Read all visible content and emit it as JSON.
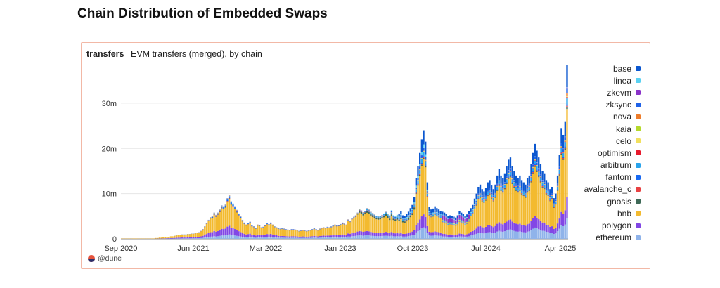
{
  "page": {
    "title": "Chain Distribution of Embedded Swaps"
  },
  "card": {
    "query_name": "transfers",
    "subtitle": "EVM transfers (merged), by chain",
    "footer": "@dune"
  },
  "legend": [
    {
      "name": "base",
      "color": "#0b57d0"
    },
    {
      "name": "linea",
      "color": "#5ad1f2"
    },
    {
      "name": "zkevm",
      "color": "#8a32c9"
    },
    {
      "name": "zksync",
      "color": "#1f62e8"
    },
    {
      "name": "nova",
      "color": "#ee7d2b"
    },
    {
      "name": "kaia",
      "color": "#b5d92b"
    },
    {
      "name": "celo",
      "color": "#f2e05e"
    },
    {
      "name": "optimism",
      "color": "#e8192c"
    },
    {
      "name": "arbitrum",
      "color": "#2aa4ec"
    },
    {
      "name": "fantom",
      "color": "#1869f2"
    },
    {
      "name": "avalanche_c",
      "color": "#e84142"
    },
    {
      "name": "gnosis",
      "color": "#3e6957"
    },
    {
      "name": "bnb",
      "color": "#f3ba2f"
    },
    {
      "name": "polygon",
      "color": "#8247e5"
    },
    {
      "name": "ethereum",
      "color": "#8fb3ea"
    }
  ],
  "chart_data": {
    "type": "bar",
    "stacked": true,
    "x_ticks": [
      "Sep 2020",
      "Jun 2021",
      "Mar 2022",
      "Jan 2023",
      "Oct 2023",
      "Jul 2024",
      "Apr 2025"
    ],
    "y_ticks": [
      "0",
      "10m",
      "20m",
      "30m"
    ],
    "ylim": [
      0,
      39000000
    ],
    "grid": true,
    "legend_position": "right",
    "x_start": "2020-09",
    "interval": "week",
    "series_order": [
      "ethereum",
      "polygon",
      "bnb",
      "gnosis",
      "avalanche_c",
      "fantom",
      "arbitrum",
      "optimism",
      "celo",
      "kaia",
      "nova",
      "zksync",
      "zkevm",
      "linea",
      "base"
    ],
    "approx_weekly_totals_m": [
      0.1,
      0.1,
      0.1,
      0.1,
      0.1,
      0.1,
      0.1,
      0.1,
      0.1,
      0.1,
      0.1,
      0.1,
      0.1,
      0.1,
      0.1,
      0.1,
      0.1,
      0.1,
      0.2,
      0.2,
      0.3,
      0.3,
      0.4,
      0.4,
      0.5,
      0.5,
      0.6,
      0.6,
      0.7,
      0.8,
      0.9,
      0.9,
      1.0,
      1.0,
      1.0,
      1.1,
      1.1,
      1.2,
      1.2,
      1.3,
      1.4,
      1.5,
      1.8,
      2.2,
      2.8,
      3.5,
      4.2,
      4.8,
      5.0,
      5.8,
      5.3,
      5.8,
      6.5,
      7.4,
      7.2,
      7.6,
      9.0,
      9.7,
      8.3,
      7.8,
      7.2,
      6.4,
      5.6,
      5.0,
      4.2,
      3.6,
      3.2,
      3.5,
      3.8,
      3.0,
      2.8,
      2.4,
      3.2,
      3.1,
      2.6,
      2.7,
      3.1,
      3.5,
      3.3,
      3.6,
      3.2,
      2.8,
      2.6,
      2.4,
      2.3,
      2.4,
      2.3,
      2.2,
      2.1,
      2.0,
      2.2,
      2.2,
      2.1,
      2.0,
      1.8,
      1.9,
      2.0,
      1.9,
      1.8,
      1.9,
      2.0,
      2.2,
      2.4,
      2.2,
      2.0,
      2.3,
      2.5,
      2.6,
      2.5,
      2.7,
      2.6,
      2.8,
      3.0,
      3.2,
      3.0,
      3.1,
      3.3,
      3.6,
      3.4,
      3.2,
      4.3,
      4.0,
      4.6,
      4.9,
      5.2,
      5.8,
      6.6,
      6.3,
      5.9,
      6.2,
      6.8,
      6.5,
      6.0,
      5.7,
      5.4,
      5.1,
      5.0,
      5.1,
      5.3,
      5.6,
      6.0,
      5.5,
      5.2,
      6.3,
      5.2,
      5.0,
      5.3,
      5.6,
      6.2,
      5.2,
      5.1,
      5.5,
      6.0,
      6.8,
      7.5,
      9.2,
      13.5,
      16.0,
      19.0,
      22.0,
      24.0,
      21.5,
      12.5,
      7.0,
      6.5,
      6.7,
      7.2,
      6.8,
      6.5,
      6.2,
      6.0,
      5.8,
      5.5,
      5.0,
      5.2,
      5.1,
      4.9,
      4.7,
      5.2,
      6.1,
      5.8,
      5.5,
      5.0,
      5.4,
      6.2,
      6.8,
      7.5,
      8.9,
      10.0,
      11.5,
      12.0,
      11.0,
      10.5,
      11.2,
      12.5,
      13.0,
      11.8,
      11.0,
      12.0,
      14.0,
      15.5,
      14.0,
      13.5,
      14.5,
      16.0,
      17.5,
      18.0,
      16.0,
      15.0,
      14.0,
      13.5,
      14.0,
      13.0,
      12.5,
      12.0,
      13.5,
      14.0,
      16.5,
      19.0,
      21.0,
      19.5,
      18.0,
      16.5,
      15.0,
      14.5,
      13.0,
      12.5,
      11.0,
      11.5,
      9.0,
      10.0,
      14.0,
      18.5,
      24.5,
      23.0,
      26.0,
      38.5
    ]
  }
}
